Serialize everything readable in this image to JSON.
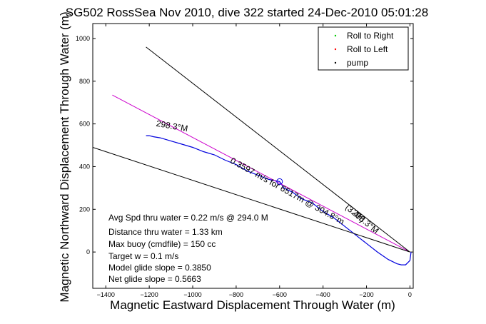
{
  "chart_data": {
    "type": "line",
    "title": "SG502 RossSea Nov 2010, dive 322 started 24-Dec-2010 05:01:28",
    "xlabel": "Magnetic Eastward Displacement Through Water (m)",
    "ylabel": "Magnetic Northward Displacement Through Water (m)",
    "xlim": [
      -1460,
      15
    ],
    "ylim": [
      -170,
      1070
    ],
    "xticks": [
      -1400,
      -1200,
      -1000,
      -800,
      -600,
      -400,
      -200,
      0
    ],
    "yticks": [
      0,
      200,
      400,
      600,
      800,
      1000
    ],
    "xtick_labels": [
      "−1400",
      "−1200",
      "−1000",
      "−800",
      "−600",
      "−400",
      "−200",
      "0"
    ],
    "ytick_labels": [
      "0",
      "200",
      "400",
      "600",
      "800",
      "1000"
    ],
    "grid": false,
    "legend_position": "top-right",
    "legend": [
      {
        "name": "Roll to Right",
        "color": "#00cc00",
        "marker": "dot"
      },
      {
        "name": "Roll to Left",
        "color": "#ff0000",
        "marker": "dot"
      },
      {
        "name": "pump",
        "color": "#000000",
        "marker": "dot"
      }
    ],
    "series": [
      {
        "color": "#0000dd",
        "x": [
          5,
          0,
          -20,
          -40,
          -60,
          -100,
          -150,
          -200,
          -250,
          -300,
          -350,
          -400,
          -450,
          -500,
          -540,
          -580,
          -600,
          -650,
          -700,
          -750,
          -800,
          -850,
          -900,
          -950,
          -1000,
          -1050,
          -1100,
          -1150,
          -1180,
          -1200,
          -1215
        ],
        "y": [
          0,
          -40,
          -60,
          -60,
          -55,
          -35,
          0,
          40,
          80,
          120,
          160,
          190,
          230,
          250,
          280,
          300,
          330,
          340,
          360,
          380,
          410,
          430,
          455,
          470,
          490,
          505,
          520,
          535,
          540,
          545,
          545
        ]
      },
      {
        "color": "#cc00cc",
        "x": [
          0,
          -1370
        ],
        "y": [
          0,
          735
        ]
      },
      {
        "color": "#000000",
        "x": [
          0,
          -1460
        ],
        "y": [
          0,
          490
        ]
      },
      {
        "color": "#000000",
        "x": [
          0,
          -1215
        ],
        "y": [
          0,
          960
        ]
      }
    ],
    "annotations": [
      {
        "text": "298.3°M",
        "x": -1170,
        "y": 590,
        "rotate": 10
      },
      {
        "text": "0.3597 m/s for 6517m @ 304.8°m",
        "x": -830,
        "y": 420,
        "rotate": 29
      },
      {
        "text": "(3.4h)",
        "x": -300,
        "y": 205,
        "rotate": 40
      },
      {
        "text": "298.3°M",
        "x": -270,
        "y": 180,
        "rotate": 40
      }
    ],
    "stats": [
      "Avg Spd thru water =  0.22 m/s @ 294.0     M",
      "Distance thru water =  1.33 km",
      "Max buoy (cmdfile) = 150 cc",
      "Target w = 0.1 m/s",
      "Model glide slope = 0.3850",
      "Net glide slope = 0.5663"
    ]
  }
}
